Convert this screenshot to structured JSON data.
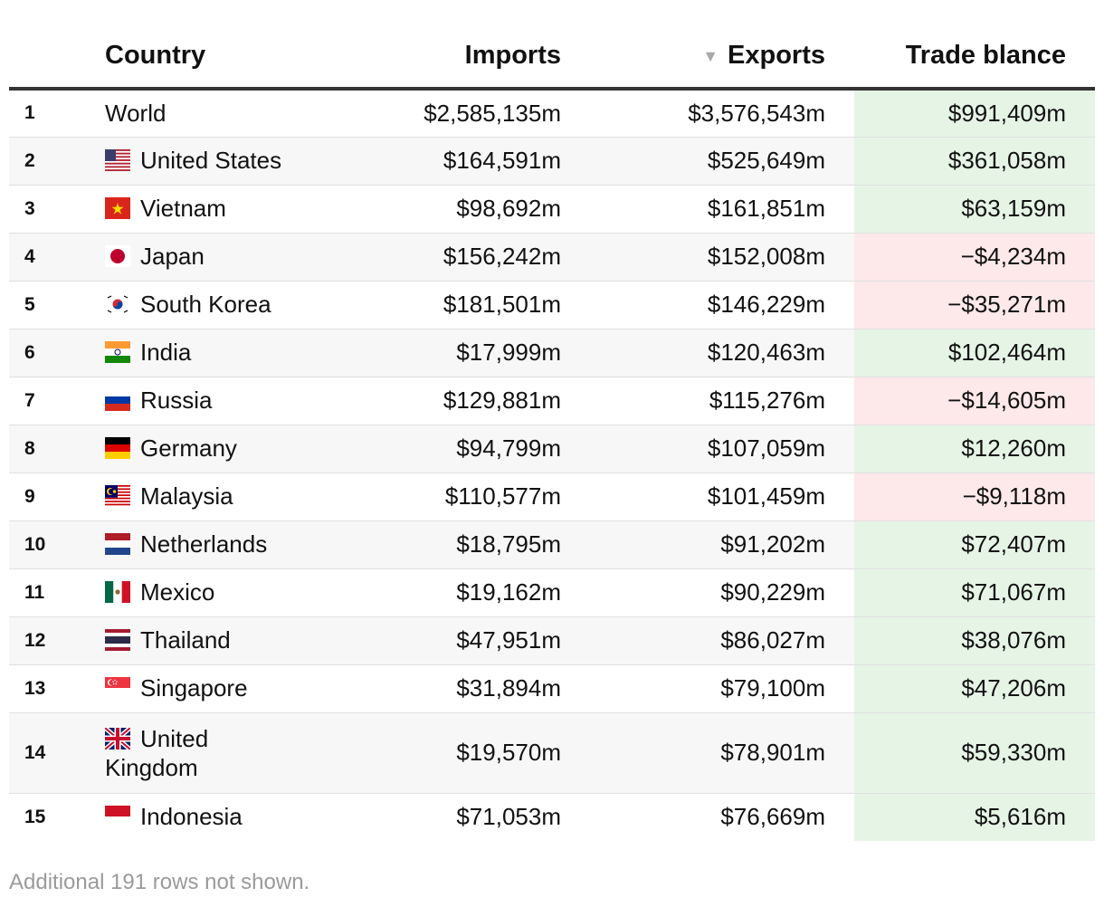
{
  "chart_data": {
    "type": "table",
    "columns": {
      "rank": "",
      "country": "Country",
      "imports": "Imports",
      "exports": "Exports",
      "balance": "Trade blance"
    },
    "sort": {
      "column": "exports",
      "direction": "descending"
    },
    "rows": [
      {
        "rank": "1",
        "country": "World",
        "flag": "none",
        "imports": "$2,585,135m",
        "exports": "$3,576,543m",
        "balance": "$991,409m",
        "sign": "positive"
      },
      {
        "rank": "2",
        "country": "United States",
        "flag": "us-flag",
        "imports": "$164,591m",
        "exports": "$525,649m",
        "balance": "$361,058m",
        "sign": "positive"
      },
      {
        "rank": "3",
        "country": "Vietnam",
        "flag": "vn-flag",
        "imports": "$98,692m",
        "exports": "$161,851m",
        "balance": "$63,159m",
        "sign": "positive"
      },
      {
        "rank": "4",
        "country": "Japan",
        "flag": "jp-flag",
        "imports": "$156,242m",
        "exports": "$152,008m",
        "balance": "−$4,234m",
        "sign": "negative"
      },
      {
        "rank": "5",
        "country": "South Korea",
        "flag": "kr-flag",
        "imports": "$181,501m",
        "exports": "$146,229m",
        "balance": "−$35,271m",
        "sign": "negative"
      },
      {
        "rank": "6",
        "country": "India",
        "flag": "in-flag",
        "imports": "$17,999m",
        "exports": "$120,463m",
        "balance": "$102,464m",
        "sign": "positive"
      },
      {
        "rank": "7",
        "country": "Russia",
        "flag": "ru-flag",
        "imports": "$129,881m",
        "exports": "$115,276m",
        "balance": "−$14,605m",
        "sign": "negative"
      },
      {
        "rank": "8",
        "country": "Germany",
        "flag": "de-flag",
        "imports": "$94,799m",
        "exports": "$107,059m",
        "balance": "$12,260m",
        "sign": "positive"
      },
      {
        "rank": "9",
        "country": "Malaysia",
        "flag": "my-flag",
        "imports": "$110,577m",
        "exports": "$101,459m",
        "balance": "−$9,118m",
        "sign": "negative"
      },
      {
        "rank": "10",
        "country": "Netherlands",
        "flag": "nl-flag",
        "imports": "$18,795m",
        "exports": "$91,202m",
        "balance": "$72,407m",
        "sign": "positive"
      },
      {
        "rank": "11",
        "country": "Mexico",
        "flag": "mx-flag",
        "imports": "$19,162m",
        "exports": "$90,229m",
        "balance": "$71,067m",
        "sign": "positive"
      },
      {
        "rank": "12",
        "country": "Thailand",
        "flag": "th-flag",
        "imports": "$47,951m",
        "exports": "$86,027m",
        "balance": "$38,076m",
        "sign": "positive"
      },
      {
        "rank": "13",
        "country": "Singapore",
        "flag": "sg-flag",
        "imports": "$31,894m",
        "exports": "$79,100m",
        "balance": "$47,206m",
        "sign": "positive"
      },
      {
        "rank": "14",
        "country": "United Kingdom",
        "flag": "gb-flag",
        "imports": "$19,570m",
        "exports": "$78,901m",
        "balance": "$59,330m",
        "sign": "positive"
      },
      {
        "rank": "15",
        "country": "Indonesia",
        "flag": "id-flag",
        "imports": "$71,053m",
        "exports": "$76,669m",
        "balance": "$5,616m",
        "sign": "positive"
      }
    ],
    "footnote": "Additional 191 rows not shown."
  },
  "colors": {
    "positive_bg": "#e6f4e6",
    "negative_bg": "#fde8ea",
    "header_rule": "#333333",
    "sort_arrow": "#aaaaaa",
    "footnote_text": "#9a9a9a"
  }
}
